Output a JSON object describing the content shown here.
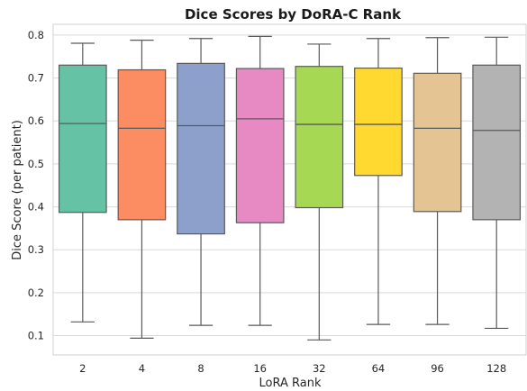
{
  "chart_data": {
    "type": "box",
    "title": "Dice Scores by DoRA-C Rank",
    "xlabel": "LoRA Rank",
    "ylabel": "Dice Score (per patient)",
    "ylim": [
      0.055,
      0.825
    ],
    "yticks": [
      "0.1",
      "0.2",
      "0.3",
      "0.4",
      "0.5",
      "0.6",
      "0.7",
      "0.8"
    ],
    "grid": "horizontal",
    "categories": [
      "2",
      "4",
      "8",
      "16",
      "32",
      "64",
      "96",
      "128"
    ],
    "boxes": [
      {
        "category": "2",
        "whisker_low": 0.132,
        "q1": 0.387,
        "median": 0.594,
        "q3": 0.73,
        "whisker_high": 0.781,
        "color": "#66c2a5"
      },
      {
        "category": "4",
        "whisker_low": 0.094,
        "q1": 0.37,
        "median": 0.583,
        "q3": 0.719,
        "whisker_high": 0.788,
        "color": "#fc8d62"
      },
      {
        "category": "8",
        "whisker_low": 0.124,
        "q1": 0.337,
        "median": 0.589,
        "q3": 0.734,
        "whisker_high": 0.792,
        "color": "#8da0cb"
      },
      {
        "category": "16",
        "whisker_low": 0.124,
        "q1": 0.363,
        "median": 0.605,
        "q3": 0.722,
        "whisker_high": 0.797,
        "color": "#e78ac3"
      },
      {
        "category": "32",
        "whisker_low": 0.09,
        "q1": 0.398,
        "median": 0.592,
        "q3": 0.727,
        "whisker_high": 0.779,
        "color": "#a6d854"
      },
      {
        "category": "64",
        "whisker_low": 0.126,
        "q1": 0.473,
        "median": 0.592,
        "q3": 0.723,
        "whisker_high": 0.792,
        "color": "#ffd92f"
      },
      {
        "category": "96",
        "whisker_low": 0.126,
        "q1": 0.389,
        "median": 0.583,
        "q3": 0.711,
        "whisker_high": 0.794,
        "color": "#e5c494"
      },
      {
        "category": "128",
        "whisker_low": 0.117,
        "q1": 0.37,
        "median": 0.578,
        "q3": 0.73,
        "whisker_high": 0.795,
        "color": "#b3b3b3"
      }
    ]
  }
}
